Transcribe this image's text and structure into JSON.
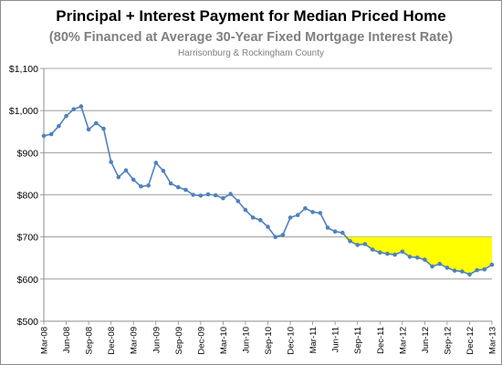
{
  "chart_data": {
    "type": "line",
    "title": "Principal + Interest Payment for Median Priced Home",
    "subtitle": "(80% Financed at Average 30-Year Fixed Mortgage Interest Rate)",
    "subtitle2": "Harrisonburg & Rockingham County",
    "xlabel": "",
    "ylabel": "",
    "ylim": [
      500,
      1100
    ],
    "yticks": [
      500,
      600,
      700,
      800,
      900,
      1000,
      1100
    ],
    "ytick_labels": [
      "$500",
      "$600",
      "$700",
      "$800",
      "$900",
      "$1,000",
      "$1,100"
    ],
    "grid": true,
    "legend": "none",
    "x": [
      "Mar-08",
      "Apr-08",
      "May-08",
      "Jun-08",
      "Jul-08",
      "Aug-08",
      "Sep-08",
      "Oct-08",
      "Nov-08",
      "Dec-08",
      "Jan-09",
      "Feb-09",
      "Mar-09",
      "Apr-09",
      "May-09",
      "Jun-09",
      "Jul-09",
      "Aug-09",
      "Sep-09",
      "Oct-09",
      "Nov-09",
      "Dec-09",
      "Jan-10",
      "Feb-10",
      "Mar-10",
      "Apr-10",
      "May-10",
      "Jun-10",
      "Jul-10",
      "Aug-10",
      "Sep-10",
      "Oct-10",
      "Nov-10",
      "Dec-10",
      "Jan-11",
      "Feb-11",
      "Mar-11",
      "Apr-11",
      "May-11",
      "Jun-11",
      "Jul-11",
      "Aug-11",
      "Sep-11",
      "Oct-11",
      "Nov-11",
      "Dec-11",
      "Jan-12",
      "Feb-12",
      "Mar-12",
      "Apr-12",
      "May-12",
      "Jun-12",
      "Jul-12",
      "Aug-12",
      "Sep-12",
      "Oct-12",
      "Nov-12",
      "Dec-12",
      "Jan-13",
      "Feb-13",
      "Mar-13"
    ],
    "xtick_labels": [
      "Mar-08",
      "Jun-08",
      "Sep-08",
      "Dec-08",
      "Mar-09",
      "Jun-09",
      "Sep-09",
      "Dec-09",
      "Mar-10",
      "Jun-10",
      "Sep-10",
      "Dec-10",
      "Mar-11",
      "Jun-11",
      "Sep-11",
      "Dec-11",
      "Mar-12",
      "Jun-12",
      "Sep-12",
      "Dec-12",
      "Mar-13"
    ],
    "series": [
      {
        "values": [
          940,
          944,
          963,
          987,
          1003,
          1010,
          955,
          970,
          957,
          878,
          842,
          858,
          836,
          820,
          822,
          876,
          857,
          827,
          818,
          812,
          800,
          798,
          801,
          799,
          792,
          802,
          785,
          764,
          746,
          740,
          724,
          700,
          705,
          746,
          752,
          768,
          759,
          757,
          722,
          713,
          710,
          690,
          681,
          683,
          670,
          663,
          660,
          658,
          665,
          653,
          651,
          646,
          630,
          636,
          627,
          620,
          618,
          611,
          621,
          623,
          634
        ],
        "color": "#4f81bd"
      }
    ],
    "shaded_band": {
      "from": "Jul-11",
      "to": "Mar-13",
      "upper": 700,
      "lower": "series",
      "color": "#ffff00"
    }
  }
}
